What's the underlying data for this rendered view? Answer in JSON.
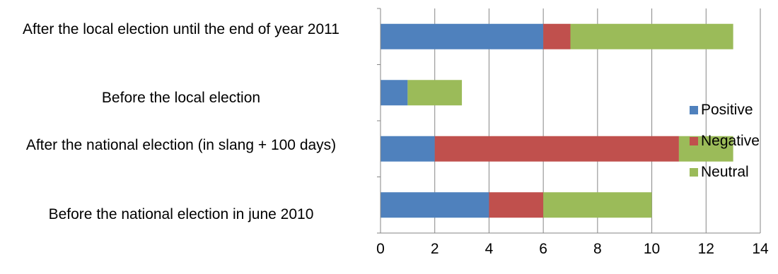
{
  "chart_data": {
    "type": "bar",
    "orientation": "horizontal",
    "stacked": true,
    "categories": [
      "After the local election until the end of year 2011",
      "Before the local election",
      "After the national election (in slang + 100 days)",
      "Before the national election in june 2010"
    ],
    "series": [
      {
        "name": "Positive",
        "color": "#4F81BD",
        "values": [
          6,
          1,
          2,
          4
        ]
      },
      {
        "name": "Negative",
        "color": "#C0504D",
        "values": [
          1,
          0,
          9,
          2
        ]
      },
      {
        "name": "Neutral",
        "color": "#9BBB59",
        "values": [
          6,
          2,
          2,
          4
        ]
      }
    ],
    "xlim": [
      0,
      14
    ],
    "xticks": [
      "0",
      "2",
      "4",
      "6",
      "8",
      "10",
      "12",
      "14"
    ],
    "grid": true,
    "legend": "right",
    "title": "",
    "xlabel": "",
    "ylabel": ""
  }
}
